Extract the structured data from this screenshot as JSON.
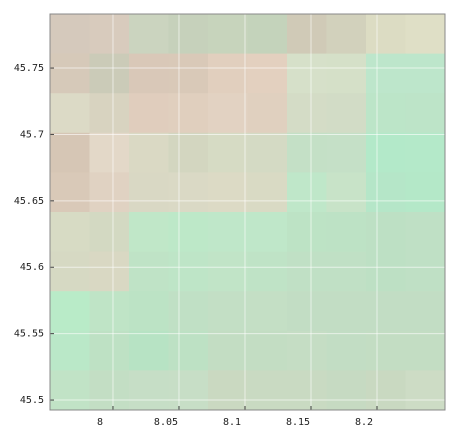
{
  "chart_data": {
    "type": "heatmap",
    "xlim": [
      7.9523,
      8.2515
    ],
    "ylim": [
      45.4925,
      45.7907
    ],
    "xticks": [
      8,
      8.05,
      8.1,
      8.15,
      8.2
    ],
    "yticks": [
      45.5,
      45.55,
      45.6,
      45.65,
      45.7,
      45.75
    ],
    "grid": true,
    "colors": [
      [
        "#d5c9bc",
        "#d8cbbd",
        "#cbd4bf",
        "#c6d1bb",
        "#c7d4bc",
        "#c4d3bb",
        "#d0cab7",
        "#d2d1bc",
        "#dcdcc3",
        "#dfdfc6"
      ],
      [
        "#d6c9b9",
        "#cbcbb8",
        "#d9c8b8",
        "#d9c9b8",
        "#e1cfbe",
        "#e3d0bf",
        "#d6e0c9",
        "#d5e0c8",
        "#bde6cb",
        "#bde6cb"
      ],
      [
        "#dcdac6",
        "#d8d3c0",
        "#e0cdbd",
        "#e0cfbe",
        "#e2d2c2",
        "#e0d0bf",
        "#d4dcc6",
        "#d2dcc6",
        "#bce5c8",
        "#bde4c8"
      ],
      [
        "#d6c6b5",
        "#e3d8c8",
        "#dad9c4",
        "#d3d6c0",
        "#d6dbc4",
        "#d4dac4",
        "#c4e0c6",
        "#c5e0c7",
        "#b3e9c9",
        "#b4e9c9"
      ],
      [
        "#d9c9b8",
        "#e0d2c2",
        "#d9d8c4",
        "#dad9c5",
        "#dcdac5",
        "#d9dac4",
        "#bfe7c9",
        "#c8e3c8",
        "#b5e6c8",
        "#b4e8c8"
      ],
      [
        "#d7dbc4",
        "#d3d9c2",
        "#c0e7c8",
        "#bde8c8",
        "#bfe7c9",
        "#bfe7c9",
        "#bde3c5",
        "#bde2c5",
        "#bde0c4",
        "#bfe0c5"
      ],
      [
        "#d6d9c3",
        "#d9d8c3",
        "#bfe3c6",
        "#bee5c7",
        "#c1e4c7",
        "#bfe3c6",
        "#c0e0c5",
        "#c0e0c5",
        "#bde0c4",
        "#bfe0c5"
      ],
      [
        "#b9ebc8",
        "#bfe4c6",
        "#bce3c5",
        "#c0e0c5",
        "#c3dfc5",
        "#c4dfc5",
        "#c2ddc4",
        "#c2ddc4",
        "#c2ddc4",
        "#c2ddc4"
      ],
      [
        "#bae8c8",
        "#bee1c4",
        "#b7e3c4",
        "#bde1c4",
        "#c3ddc3",
        "#c3ddc3",
        "#c5ddc4",
        "#c2ddc4",
        "#c3ddc3",
        "#c3ddc3"
      ],
      [
        "#c1e3c6",
        "#c3dec4",
        "#c6dec6",
        "#c7dec6",
        "#cad9c1",
        "#c9dac2",
        "#c9dac2",
        "#c6dac2",
        "#c9d9c1",
        "#cddcc5"
      ]
    ]
  }
}
